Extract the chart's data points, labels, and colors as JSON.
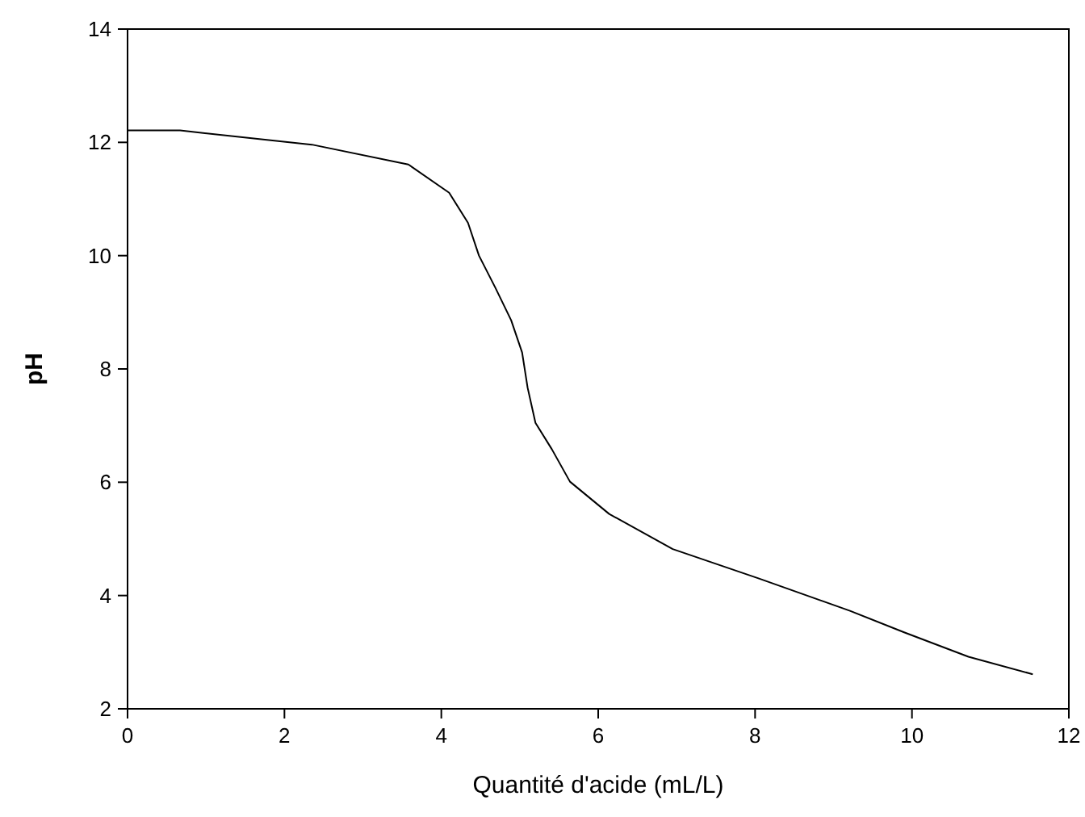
{
  "chart_data": {
    "type": "line",
    "xlabel": "Quantité d'acide (mL/L)",
    "ylabel": "pH",
    "x": [
      0,
      0.67,
      2.35,
      3.58,
      4.1,
      4.34,
      4.48,
      4.69,
      4.89,
      5.03,
      5.1,
      5.2,
      5.41,
      5.64,
      6.14,
      6.95,
      8.05,
      9.21,
      9.9,
      10.72,
      11.54
    ],
    "series": [
      {
        "color": "#000000",
        "values": [
          12.21,
          12.21,
          11.96,
          11.61,
          11.11,
          10.58,
          10.0,
          9.43,
          8.86,
          8.29,
          7.67,
          7.05,
          6.58,
          6.01,
          5.44,
          4.82,
          4.3,
          3.73,
          3.35,
          2.92,
          2.61
        ]
      }
    ],
    "xlim": [
      0,
      12
    ],
    "xticks": [
      0,
      2,
      4,
      6,
      8,
      10,
      12
    ],
    "ylim": [
      2,
      14
    ],
    "yticks": [
      2,
      4,
      6,
      8,
      10,
      12,
      14
    ],
    "marker": "none",
    "line_style": "solid"
  }
}
